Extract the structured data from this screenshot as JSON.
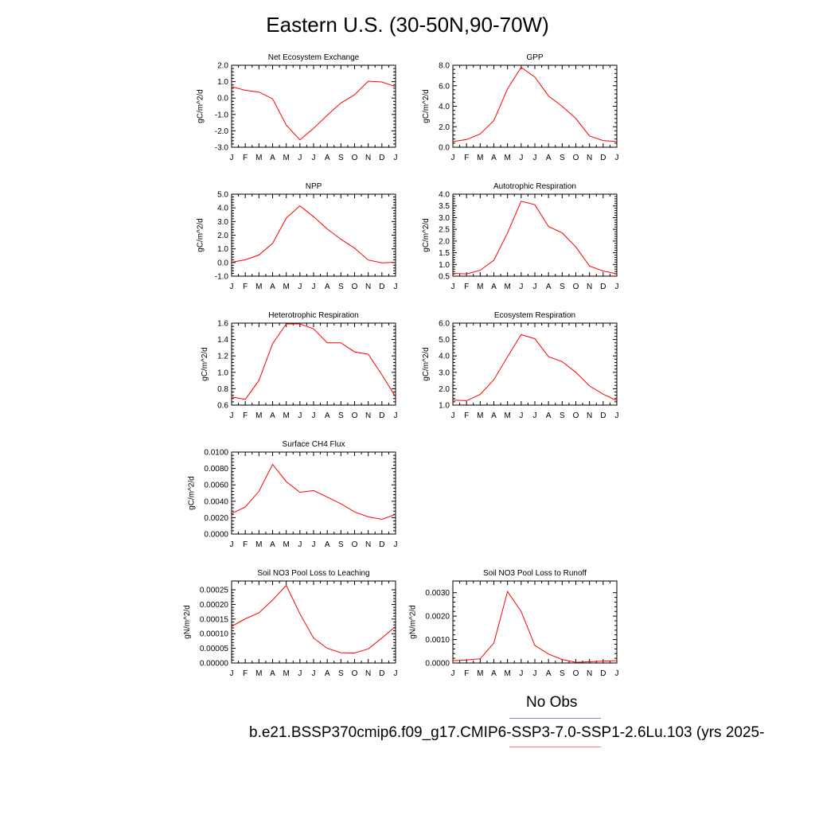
{
  "page_title": "Eastern U.S. (30-50N,90-70W)",
  "legend": {
    "obs_label": "No Obs",
    "obs_color": "#8080f0",
    "case_label": "b.e21.BSSP370cmip6.f09_g17.CMIP6-SSP3-7.0-SSP1-2.6Lu.103 (yrs 2025-",
    "case_color": "#f08080"
  },
  "line_color": "#ff0000",
  "chart_data": [
    {
      "type": "line",
      "title": "Net Ecosystem Exchange",
      "ylabel": "gC/m^2/d",
      "x": [
        "J",
        "F",
        "M",
        "A",
        "M",
        "J",
        "J",
        "A",
        "S",
        "O",
        "N",
        "D",
        "J"
      ],
      "ylim": [
        -3.0,
        2.0
      ],
      "yticks": [
        "2.0",
        "1.0",
        "0.0",
        "-1.0",
        "-2.0",
        "-3.0"
      ],
      "series": [
        {
          "values": [
            0.7,
            0.47,
            0.37,
            -0.05,
            -1.65,
            -2.55,
            -1.85,
            -1.05,
            -0.3,
            0.2,
            1.03,
            0.98,
            0.7
          ]
        }
      ]
    },
    {
      "type": "line",
      "title": "GPP",
      "ylabel": "gC/m^2/d",
      "x": [
        "J",
        "F",
        "M",
        "A",
        "M",
        "J",
        "J",
        "A",
        "S",
        "O",
        "N",
        "D",
        "J"
      ],
      "ylim": [
        0.0,
        8.0
      ],
      "yticks": [
        "8.0",
        "6.0",
        "4.0",
        "2.0",
        "0.0"
      ],
      "series": [
        {
          "values": [
            0.55,
            0.75,
            1.3,
            2.6,
            5.7,
            7.8,
            6.85,
            5.0,
            4.0,
            2.8,
            1.1,
            0.65,
            0.55
          ]
        }
      ]
    },
    {
      "type": "line",
      "title": "NPP",
      "ylabel": "gC/m^2/d",
      "x": [
        "J",
        "F",
        "M",
        "A",
        "M",
        "J",
        "J",
        "A",
        "S",
        "O",
        "N",
        "D",
        "J"
      ],
      "ylim": [
        -1.0,
        5.0
      ],
      "yticks": [
        "5.0",
        "4.0",
        "3.0",
        "2.0",
        "1.0",
        "0.0",
        "-1.0"
      ],
      "series": [
        {
          "values": [
            0.02,
            0.2,
            0.55,
            1.4,
            3.25,
            4.15,
            3.35,
            2.45,
            1.7,
            1.05,
            0.18,
            -0.02,
            0.02
          ]
        }
      ]
    },
    {
      "type": "line",
      "title": "Autotrophic Respiration",
      "ylabel": "gC/m^2/d",
      "x": [
        "J",
        "F",
        "M",
        "A",
        "M",
        "J",
        "J",
        "A",
        "S",
        "O",
        "N",
        "D",
        "J"
      ],
      "ylim": [
        0.5,
        4.0
      ],
      "yticks": [
        "4.0",
        "3.5",
        "3.0",
        "2.5",
        "2.0",
        "1.5",
        "1.0",
        "0.5"
      ],
      "series": [
        {
          "values": [
            0.62,
            0.6,
            0.75,
            1.18,
            2.35,
            3.7,
            3.55,
            2.62,
            2.35,
            1.75,
            0.93,
            0.72,
            0.6
          ]
        }
      ]
    },
    {
      "type": "line",
      "title": "Heterotrophic Respiration",
      "ylabel": "gC/m^2/d",
      "x": [
        "J",
        "F",
        "M",
        "A",
        "M",
        "J",
        "J",
        "A",
        "S",
        "O",
        "N",
        "D",
        "J"
      ],
      "ylim": [
        0.6,
        1.6
      ],
      "yticks": [
        "1.6",
        "1.4",
        "1.2",
        "1.0",
        "0.8",
        "0.6"
      ],
      "series": [
        {
          "values": [
            0.7,
            0.67,
            0.9,
            1.35,
            1.59,
            1.59,
            1.53,
            1.36,
            1.36,
            1.25,
            1.22,
            0.97,
            0.7
          ]
        }
      ]
    },
    {
      "type": "line",
      "title": "Ecosystem Respiration",
      "ylabel": "gC/m^2/d",
      "x": [
        "J",
        "F",
        "M",
        "A",
        "M",
        "J",
        "J",
        "A",
        "S",
        "O",
        "N",
        "D",
        "J"
      ],
      "ylim": [
        1.0,
        6.0
      ],
      "yticks": [
        "6.0",
        "5.0",
        "4.0",
        "3.0",
        "2.0",
        "1.0"
      ],
      "series": [
        {
          "values": [
            1.3,
            1.27,
            1.65,
            2.55,
            3.95,
            5.3,
            5.05,
            3.95,
            3.65,
            3.0,
            2.17,
            1.67,
            1.27
          ]
        }
      ]
    },
    {
      "type": "line",
      "title": "Surface CH4 Flux",
      "ylabel": "gC/m^2/d",
      "x": [
        "J",
        "F",
        "M",
        "A",
        "M",
        "J",
        "J",
        "A",
        "S",
        "O",
        "N",
        "D",
        "J"
      ],
      "ylim": [
        0.0,
        0.01
      ],
      "yticks": [
        "0.0100",
        "0.0080",
        "0.0060",
        "0.0040",
        "0.0020",
        "0.0000"
      ],
      "series": [
        {
          "values": [
            0.0025,
            0.0033,
            0.0052,
            0.0085,
            0.0064,
            0.0051,
            0.0053,
            0.0045,
            0.0037,
            0.0027,
            0.0021,
            0.0018,
            0.0024
          ]
        }
      ]
    },
    {
      "type": "line",
      "title": "Soil NO3 Pool Loss to Leaching",
      "ylabel": "gN/m^2/d",
      "x": [
        "J",
        "F",
        "M",
        "A",
        "M",
        "J",
        "J",
        "A",
        "S",
        "O",
        "N",
        "D",
        "J"
      ],
      "ylim": [
        0.0,
        0.00028
      ],
      "yticks": [
        "0.00025",
        "0.00020",
        "0.00015",
        "0.00010",
        "0.00005",
        "0.00000"
      ],
      "series": [
        {
          "values": [
            0.000125,
            0.000151,
            0.000171,
            0.000215,
            0.000265,
            0.000168,
            8.5e-05,
            5e-05,
            3.5e-05,
            3.4e-05,
            4.8e-05,
            8.5e-05,
            0.000125
          ]
        }
      ]
    },
    {
      "type": "line",
      "title": "Soil NO3 Pool Loss to Runoff",
      "ylabel": "gN/m^2/d",
      "x": [
        "J",
        "F",
        "M",
        "A",
        "M",
        "J",
        "J",
        "A",
        "S",
        "O",
        "N",
        "D",
        "J"
      ],
      "ylim": [
        0.0,
        0.0035
      ],
      "yticks": [
        "0.0030",
        "0.0020",
        "0.0010",
        "0.0000"
      ],
      "series": [
        {
          "values": [
            0.0001,
            0.00013,
            0.00018,
            0.00085,
            0.00305,
            0.0022,
            0.00075,
            0.00038,
            0.00015,
            3e-05,
            5e-05,
            8e-05,
            0.0001
          ]
        }
      ]
    }
  ]
}
